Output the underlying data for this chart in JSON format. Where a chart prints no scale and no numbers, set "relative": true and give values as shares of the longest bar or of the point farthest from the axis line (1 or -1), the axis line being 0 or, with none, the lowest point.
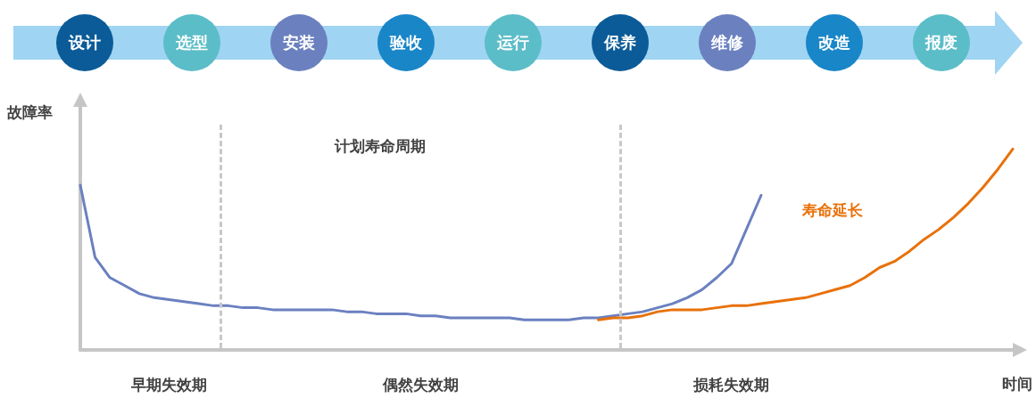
{
  "chart_data": [
    {
      "type": "other",
      "categories": [
        "设计",
        "选型",
        "安装",
        "验收",
        "运行",
        "保养",
        "维修",
        "改造",
        "报废"
      ],
      "colors": [
        "#0b5b98",
        "#5bbdc8",
        "#6b80bf",
        "#1986c8",
        "#5bbdc8",
        "#0b5b98",
        "#6b80bf",
        "#1986c8",
        "#5bbdc8"
      ]
    },
    {
      "type": "line",
      "relative": true,
      "xlabel": "时间",
      "ylabel": "故障率",
      "tick_labels": "x",
      "grid": false,
      "legend": false,
      "marker": "none",
      "line_style": "solid",
      "categories": [
        null,
        null,
        null,
        null,
        null,
        null,
        "早期失效期",
        null,
        null,
        null,
        null,
        null,
        null,
        null,
        null,
        null,
        null,
        null,
        null,
        null,
        null,
        null,
        null,
        "偶然失效期",
        null,
        null,
        null,
        null,
        null,
        null,
        null,
        null,
        null,
        null,
        null,
        null,
        null,
        null,
        null,
        null,
        null,
        null,
        null,
        null,
        "损耗失效期",
        null,
        null,
        null,
        null,
        null,
        null,
        null,
        null,
        null,
        null,
        null,
        null,
        null,
        null,
        null,
        null,
        null,
        null,
        null
      ],
      "series": [
        {
          "color": "#6a80c0",
          "values": [
            0.82,
            0.46,
            0.36,
            0.32,
            0.28,
            0.26,
            0.25,
            0.24,
            0.23,
            0.22,
            0.22,
            0.21,
            0.21,
            0.2,
            0.2,
            0.2,
            0.2,
            0.2,
            0.19,
            0.19,
            0.18,
            0.18,
            0.18,
            0.17,
            0.17,
            0.16,
            0.16,
            0.16,
            0.16,
            0.16,
            0.15,
            0.15,
            0.15,
            0.15,
            0.16,
            0.16,
            0.17,
            0.18,
            0.19,
            0.21,
            0.23,
            0.26,
            0.3,
            0.36,
            0.43,
            0.6,
            0.77,
            null,
            null,
            null,
            null,
            null,
            null,
            null,
            null,
            null,
            null,
            null,
            null,
            null,
            null,
            null,
            null,
            null
          ]
        },
        {
          "name": "寿命延长",
          "color": "#e8710a",
          "values": [
            null,
            null,
            null,
            null,
            null,
            null,
            null,
            null,
            null,
            null,
            null,
            null,
            null,
            null,
            null,
            null,
            null,
            null,
            null,
            null,
            null,
            null,
            null,
            null,
            null,
            null,
            null,
            null,
            null,
            null,
            null,
            null,
            null,
            null,
            null,
            0.15,
            0.16,
            0.16,
            0.17,
            0.19,
            0.2,
            0.2,
            0.2,
            0.21,
            0.22,
            0.22,
            0.23,
            0.24,
            0.25,
            0.26,
            0.28,
            0.3,
            0.32,
            0.36,
            0.41,
            0.44,
            0.49,
            0.55,
            0.6,
            0.66,
            0.73,
            0.81,
            0.9,
            1.0
          ]
        }
      ],
      "annotations": [
        "计划寿命周期"
      ]
    }
  ]
}
